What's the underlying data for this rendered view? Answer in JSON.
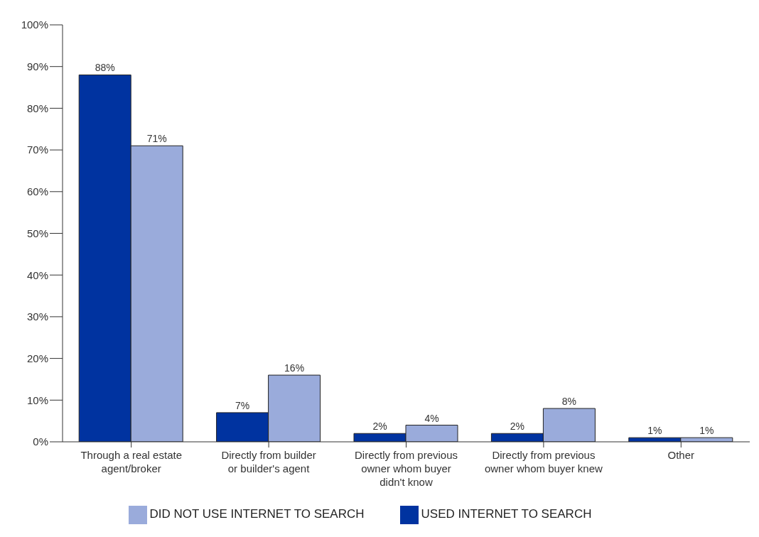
{
  "chart_data": {
    "type": "bar",
    "categories": [
      "Through a real estate agent/broker",
      "Directly from builder or builder's agent",
      "Directly from previous owner whom buyer didn't know",
      "Directly from previous owner whom buyer knew",
      "Other"
    ],
    "series": [
      {
        "name": "USED INTERNET TO SEARCH",
        "color": "#0033a0",
        "values": [
          88,
          7,
          2,
          2,
          1
        ],
        "value_labels": [
          "88%",
          "7%",
          "2%",
          "2%",
          "1%"
        ]
      },
      {
        "name": "DID NOT USE INTERNET TO SEARCH",
        "color": "#9aabdb",
        "values": [
          71,
          16,
          4,
          8,
          1
        ],
        "value_labels": [
          "71%",
          "16%",
          "4%",
          "8%",
          "1%"
        ]
      }
    ],
    "ylim": [
      0,
      100
    ],
    "yticks": [
      {
        "value": 0,
        "label": "0%"
      },
      {
        "value": 10,
        "label": "10%"
      },
      {
        "value": 20,
        "label": "20%"
      },
      {
        "value": 30,
        "label": "30%"
      },
      {
        "value": 40,
        "label": "40%"
      },
      {
        "value": 50,
        "label": "50%"
      },
      {
        "value": 60,
        "label": "60%"
      },
      {
        "value": 70,
        "label": "70%"
      },
      {
        "value": 80,
        "label": "80%"
      },
      {
        "value": 90,
        "label": "90%"
      },
      {
        "value": 100,
        "label": "100%"
      }
    ],
    "grid": false,
    "legend": "bottom"
  }
}
